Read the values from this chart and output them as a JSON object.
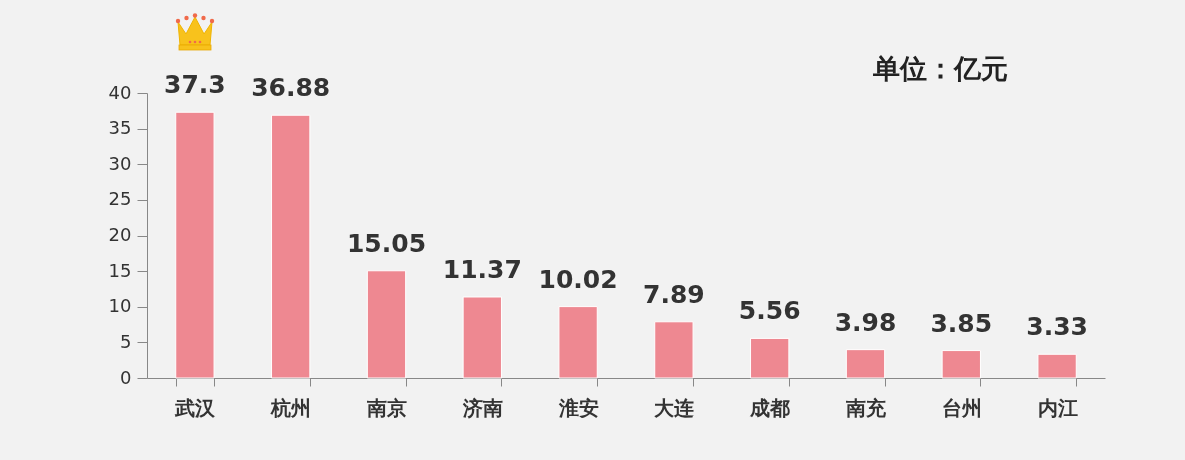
{
  "chart_data": {
    "type": "bar",
    "categories": [
      "武汉",
      "杭州",
      "南京",
      "济南",
      "淮安",
      "大连",
      "成都",
      "南充",
      "台州",
      "内江"
    ],
    "values": [
      37.3,
      36.88,
      15.05,
      11.37,
      10.02,
      7.89,
      5.56,
      3.98,
      3.85,
      3.33
    ],
    "color": "#ee8891",
    "ylim": [
      0,
      40
    ],
    "yticks": [
      0,
      5,
      10,
      15,
      20,
      25,
      30,
      35,
      40
    ],
    "grid": false,
    "data_labels": true,
    "annotations": [
      "单位：亿元"
    ]
  }
}
